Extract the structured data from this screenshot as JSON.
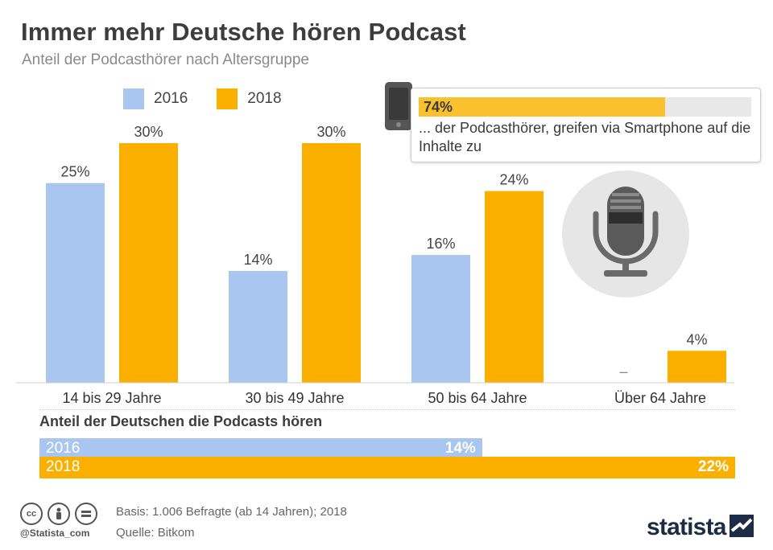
{
  "header": {
    "title": "Immer mehr Deutsche hören Podcast",
    "subtitle": "Anteil der Podcasthörer nach Altersgruppe"
  },
  "colors": {
    "series_2016": "#a8c6ef",
    "series_2018": "#fbb000",
    "callout_fill": "#fbc02d",
    "text_dark": "#3d3d3d",
    "brand": "#1c2c45"
  },
  "chart_data": {
    "type": "bar",
    "categories": [
      "14 bis 29 Jahre",
      "30 bis 49 Jahre",
      "50 bis 64 Jahre",
      "Über 64 Jahre"
    ],
    "series": [
      {
        "name": "2016",
        "values": [
          25,
          14,
          16,
          null
        ],
        "labels": [
          "25%",
          "14%",
          "16%",
          "–"
        ]
      },
      {
        "name": "2018",
        "values": [
          30,
          30,
          24,
          4
        ],
        "labels": [
          "30%",
          "30%",
          "24%",
          "4%"
        ]
      }
    ],
    "ylim": [
      0,
      30
    ],
    "grid": false,
    "legend_position": "top-left"
  },
  "callout": {
    "value_label": "74%",
    "value": 74,
    "text": "... der Podcasthörer, greifen via Smartphone auf die Inhalte zu",
    "icon": "smartphone-icon"
  },
  "decoration": {
    "icon": "microphone-icon"
  },
  "summary": {
    "title": "Anteil der Deutschen die Podcasts hören",
    "max_value": 22,
    "bars": [
      {
        "year": "2016",
        "value": 14,
        "label": "14%"
      },
      {
        "year": "2018",
        "value": 22,
        "label": "22%"
      }
    ]
  },
  "footer": {
    "basis": "Basis: 1.006 Befragte (ab 14 Jahren); 2018",
    "source": "Quelle: Bitkom",
    "handle": "@Statista_com",
    "brand": "statista",
    "license_icons": [
      "cc-icon",
      "by-icon",
      "nd-icon"
    ]
  }
}
